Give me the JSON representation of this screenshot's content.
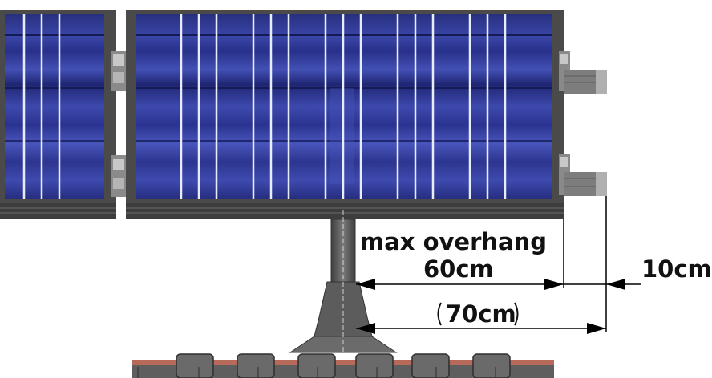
{
  "annotations": {
    "max_overhang_label": "max overhang",
    "dim_60": "60cm",
    "dim_10": "10cm",
    "dim_70": "70cm"
  },
  "colors": {
    "panel_blue": "#2f3a9a",
    "panel_blue_light": "#4a57b8",
    "panel_blue_dark": "#1e2470",
    "frame_gray": "#4a4a4a",
    "structure_gray": "#5a5a5a",
    "base_gray": "#6e6e6e",
    "base_red": "#b03030",
    "dimension_line": "#000000"
  }
}
